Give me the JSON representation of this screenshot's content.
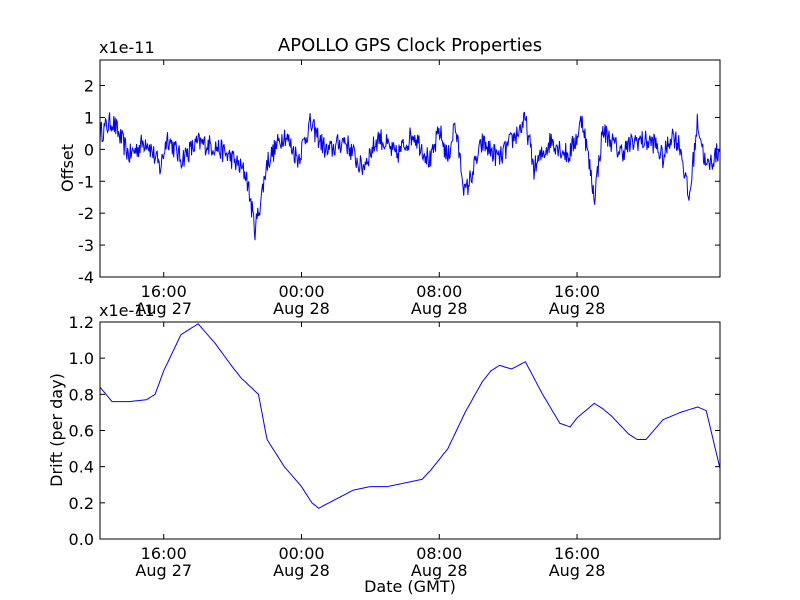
{
  "chart_data": [
    {
      "type": "line",
      "title": "APOLLO GPS Clock Properties",
      "ylabel": "Offset",
      "xlabel": "",
      "yscale_label": "x1e-11",
      "ylim": [
        -4,
        2.8
      ],
      "yticks": [
        "-4",
        "-3",
        "-2",
        "-1",
        "0",
        "1",
        "2"
      ],
      "yticks_values": [
        -4,
        -3,
        -2,
        -1,
        0,
        1,
        2
      ],
      "xlim_hours": [
        12.3,
        48.3
      ],
      "xticks": [
        {
          "hour": 16,
          "time": "16:00",
          "date": "Aug 27"
        },
        {
          "hour": 24,
          "time": "00:00",
          "date": "Aug 28"
        },
        {
          "hour": 32,
          "time": "08:00",
          "date": "Aug 28"
        },
        {
          "hour": 40,
          "time": "16:00",
          "date": "Aug 28"
        }
      ],
      "color": "#0000ff",
      "series_hours": [
        12.3,
        13.0,
        14.0,
        15.0,
        15.8,
        16.2,
        17.0,
        18.0,
        19.0,
        20.0,
        20.8,
        21.3,
        21.6,
        22.0,
        23.0,
        23.8,
        24.5,
        25.5,
        26.5,
        27.5,
        28.5,
        29.5,
        30.5,
        31.5,
        32.0,
        32.5,
        32.9,
        33.5,
        34.5,
        35.5,
        36.5,
        37.0,
        37.5,
        38.5,
        39.5,
        40.0,
        40.3,
        41.0,
        41.5,
        42.5,
        43.5,
        44.5,
        45.0,
        45.5,
        46.0,
        46.5,
        47.0,
        47.5,
        48.3
      ],
      "series_values": [
        0.5,
        0.9,
        -0.2,
        0.3,
        -0.6,
        0.4,
        -0.3,
        0.2,
        0.1,
        -0.3,
        -0.8,
        -2.5,
        -1.7,
        -0.4,
        0.5,
        -0.3,
        0.8,
        -0.1,
        0.3,
        -0.6,
        0.4,
        -0.2,
        0.5,
        -0.4,
        0.6,
        -0.3,
        0.8,
        -1.4,
        0.2,
        -0.3,
        0.5,
        0.9,
        -0.6,
        0.3,
        -0.2,
        0.4,
        1.0,
        -1.5,
        0.6,
        -0.1,
        0.3,
        0.2,
        -0.3,
        0.5,
        0.1,
        -1.6,
        0.9,
        -0.6,
        0.0
      ]
    },
    {
      "type": "line",
      "title": "",
      "ylabel": "Drift (per day)",
      "xlabel": "Date (GMT)",
      "yscale_label": "x1e-11",
      "ylim": [
        0.0,
        1.2
      ],
      "yticks": [
        "0.0",
        "0.2",
        "0.4",
        "0.6",
        "0.8",
        "1.0",
        "1.2"
      ],
      "yticks_values": [
        0.0,
        0.2,
        0.4,
        0.6,
        0.8,
        1.0,
        1.2
      ],
      "xlim_hours": [
        12.3,
        48.3
      ],
      "xticks": [
        {
          "hour": 16,
          "time": "16:00",
          "date": "Aug 27"
        },
        {
          "hour": 24,
          "time": "00:00",
          "date": "Aug 28"
        },
        {
          "hour": 32,
          "time": "08:00",
          "date": "Aug 28"
        },
        {
          "hour": 40,
          "time": "16:00",
          "date": "Aug 28"
        }
      ],
      "color": "#0000ff",
      "series_hours": [
        12.3,
        13.0,
        14.0,
        15.0,
        15.5,
        16.0,
        17.0,
        17.5,
        18.0,
        19.0,
        20.0,
        20.5,
        21.5,
        22.0,
        23.0,
        24.0,
        24.6,
        25.0,
        26.0,
        27.0,
        28.0,
        29.0,
        30.0,
        31.0,
        31.5,
        32.5,
        33.5,
        34.5,
        35.0,
        35.5,
        36.2,
        37.0,
        38.0,
        39.0,
        39.6,
        40.0,
        41.0,
        41.5,
        42.0,
        43.0,
        43.5,
        44.0,
        45.0,
        46.0,
        47.0,
        47.5,
        48.3
      ],
      "series_values": [
        0.84,
        0.76,
        0.76,
        0.77,
        0.8,
        0.93,
        1.13,
        1.16,
        1.19,
        1.08,
        0.95,
        0.89,
        0.8,
        0.55,
        0.4,
        0.29,
        0.2,
        0.17,
        0.22,
        0.27,
        0.29,
        0.29,
        0.31,
        0.33,
        0.38,
        0.5,
        0.7,
        0.87,
        0.93,
        0.96,
        0.94,
        0.98,
        0.8,
        0.64,
        0.62,
        0.67,
        0.75,
        0.72,
        0.68,
        0.58,
        0.55,
        0.55,
        0.66,
        0.7,
        0.73,
        0.71,
        0.39
      ]
    }
  ]
}
